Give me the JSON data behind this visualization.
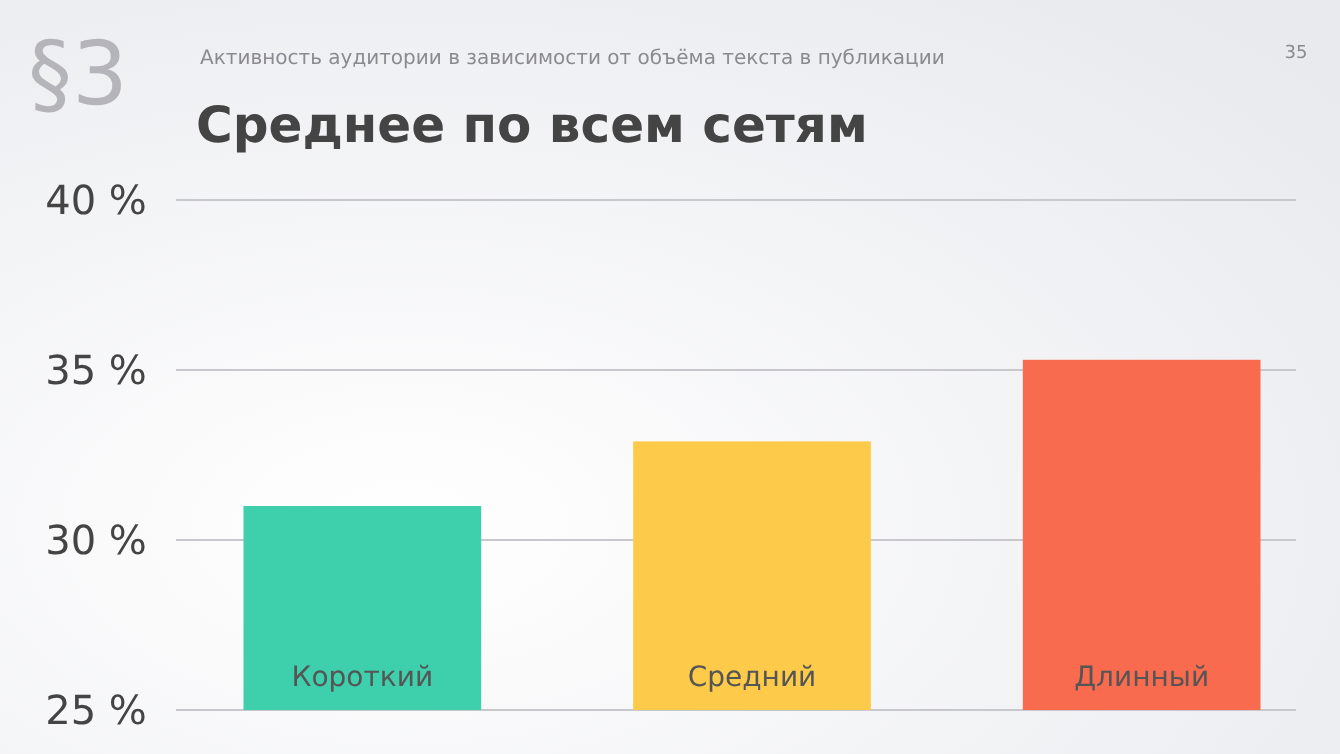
{
  "chart_data": {
    "type": "bar",
    "title": "Среднее по всем сетям",
    "subtitle": "Активность аудитории в зависимости от объёма текста в публикации",
    "annotations": [
      "§3",
      "35"
    ],
    "categories": [
      "Короткий",
      "Средний",
      "Длинный"
    ],
    "values": [
      31.0,
      32.9,
      35.3
    ],
    "colors": [
      "#3ecfad",
      "#fdca4a",
      "#f86b4f"
    ],
    "ylim": [
      25,
      40
    ],
    "yticks": [
      {
        "value": 25,
        "label": "25 %"
      },
      {
        "value": 30,
        "label": "30 %"
      },
      {
        "value": 35,
        "label": "35 %"
      },
      {
        "value": 40,
        "label": "40 %"
      }
    ],
    "grid": true
  }
}
